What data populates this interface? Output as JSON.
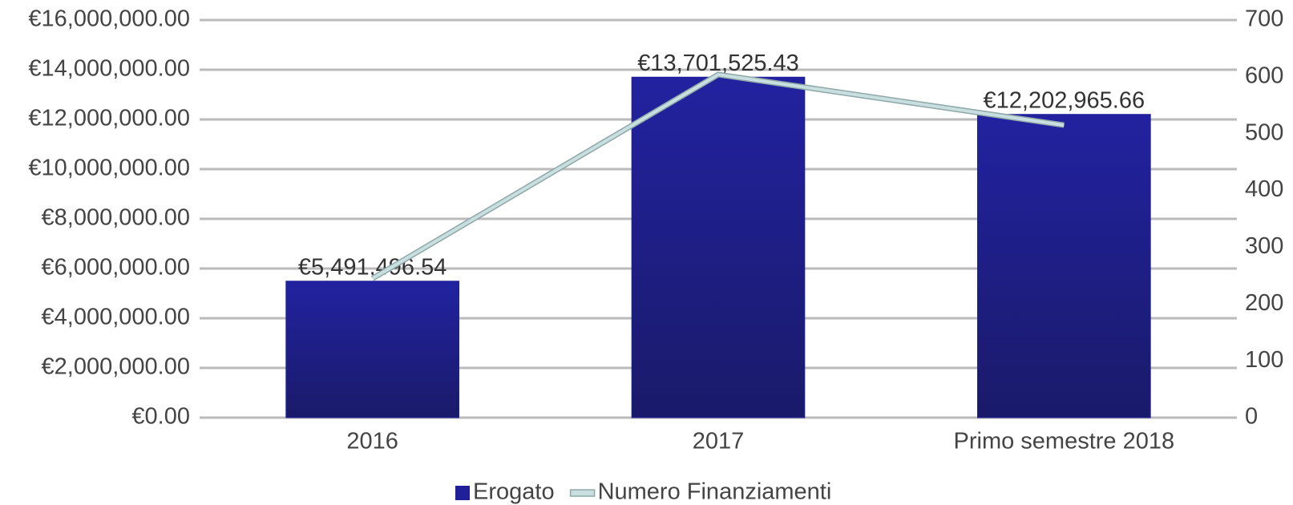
{
  "chart_data": {
    "type": "bar",
    "categories": [
      "2016",
      "2017",
      "Primo semestre 2018"
    ],
    "series": [
      {
        "name": "Erogato",
        "type": "bar",
        "color": "#20209a",
        "values": [
          5491496.54,
          13701525.43,
          12202965.66
        ],
        "value_labels": [
          "€5,491,496.54",
          "€13,701,525.43",
          "€12,202,965.66"
        ]
      },
      {
        "name": "Numero Finanziamenti",
        "type": "line",
        "axis": "y2",
        "color": "#c9dfdf",
        "values": [
          245,
          604,
          515
        ]
      }
    ],
    "ylim": [
      0,
      16000000
    ],
    "yticks": [
      {
        "value": 0,
        "label": "€0.00"
      },
      {
        "value": 2000000,
        "label": "€2,000,000.00"
      },
      {
        "value": 4000000,
        "label": "€4,000,000.00"
      },
      {
        "value": 6000000,
        "label": "€6,000,000.00"
      },
      {
        "value": 8000000,
        "label": "€8,000,000.00"
      },
      {
        "value": 10000000,
        "label": "€10,000,000.00"
      },
      {
        "value": 12000000,
        "label": "€12,000,000.00"
      },
      {
        "value": 14000000,
        "label": "€14,000,000.00"
      },
      {
        "value": 16000000,
        "label": "€16,000,000.00"
      }
    ],
    "y2lim": [
      0,
      700
    ],
    "y2ticks": [
      0,
      100,
      200,
      300,
      400,
      500,
      600,
      700
    ],
    "grid": true,
    "legend": "bottom"
  }
}
